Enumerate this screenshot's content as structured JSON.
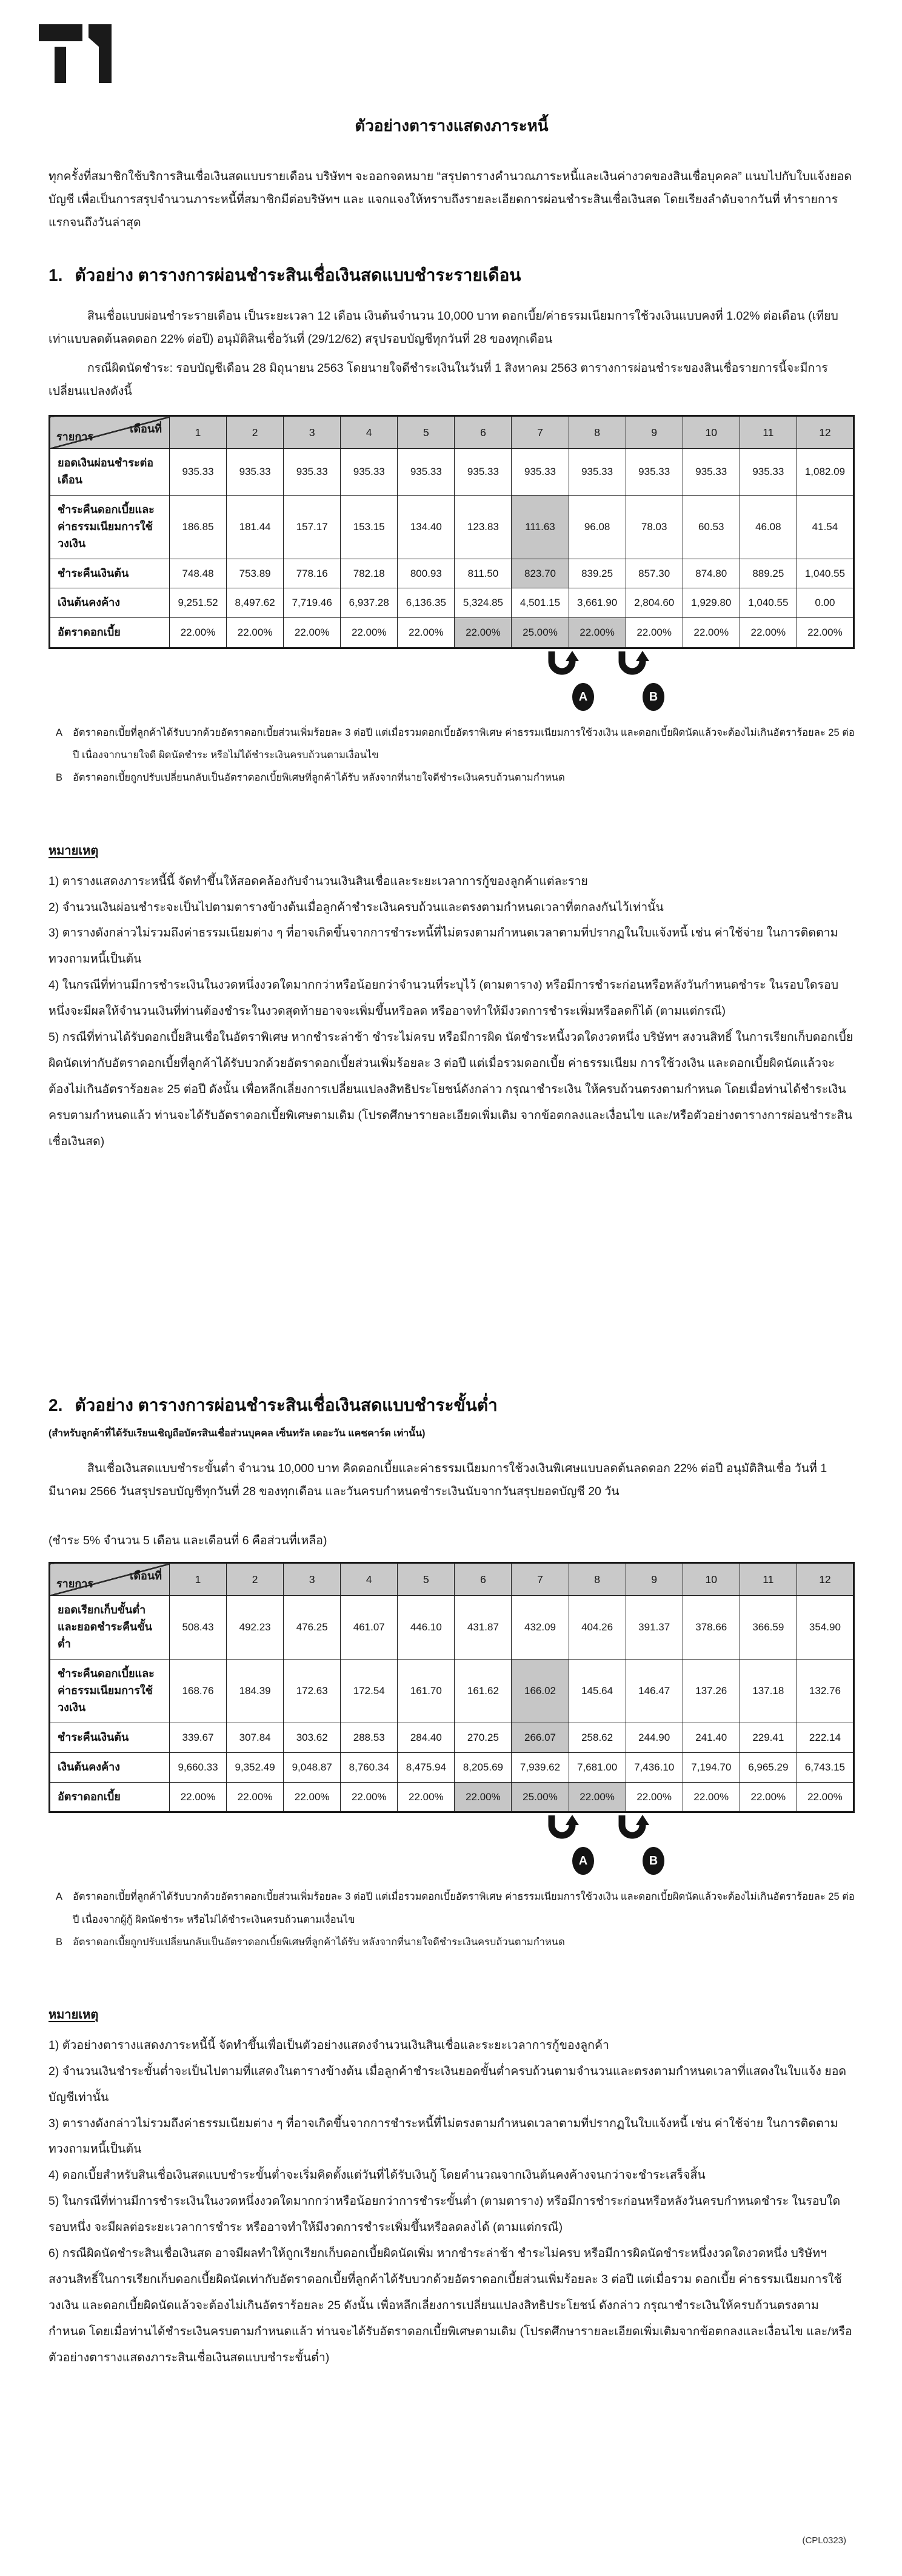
{
  "page": {
    "brand": "T1",
    "title": "ตัวอย่างตารางแสดงภาระหนี้",
    "intro": "ทุกครั้งที่สมาชิกใช้บริการสินเชื่อเงินสดแบบรายเดือน บริษัทฯ จะออกจดหมาย “สรุปตารางคำนวณภาระหนี้และเงินค่างวดของสินเชื่อบุคคล” แนบไปกับใบแจ้งยอดบัญชี เพื่อเป็นการสรุปจำนวนภาระหนี้ที่สมาชิกมีต่อบริษัทฯ และ แจกแจงให้ทราบถึงรายละเอียดการผ่อนชำระสินเชื่อเงินสด โดยเรียงลำดับจากวันที่ ทำรายการแรกจนถึงวันล่าสุด",
    "footer_code": "(CPL0323)"
  },
  "section1": {
    "number": "1.",
    "heading": "ตัวอย่าง ตารางการผ่อนชำระสินเชื่อเงินสดแบบชำระรายเดือน",
    "para1": "สินเชื่อแบบผ่อนชำระรายเดือน เป็นระยะเวลา 12 เดือน เงินต้นจำนวน 10,000 บาท ดอกเบี้ย/ค่าธรรมเนียมการใช้วงเงินแบบคงที่ 1.02% ต่อเดือน (เทียบเท่าแบบลดต้นลดดอก 22% ต่อปี) อนุมัติสินเชื่อวันที่ (29/12/62) สรุปรอบบัญชีทุกวันที่ 28 ของทุกเดือน",
    "para2": "กรณีผิดนัดชำระ: รอบบัญชีเดือน 28 มิถุนายน 2563 โดยนายใจดีชำระเงินในวันที่ 1 สิงหาคม 2563 ตารางการผ่อนชำระของสินเชื่อรายการนี้จะมีการเปลี่ยนแปลงดังนี้",
    "table": {
      "corner_top": "เดือนที่",
      "corner_bottom": "รายการ",
      "columns": [
        "1",
        "2",
        "3",
        "4",
        "5",
        "6",
        "7",
        "8",
        "9",
        "10",
        "11",
        "12"
      ],
      "rows": [
        {
          "label": "ยอดเงินผ่อนชำระต่อเดือน",
          "values": [
            "935.33",
            "935.33",
            "935.33",
            "935.33",
            "935.33",
            "935.33",
            "935.33",
            "935.33",
            "935.33",
            "935.33",
            "935.33",
            "1,082.09"
          ],
          "highlight": []
        },
        {
          "label": "ชำระคืนดอกเบี้ยและ\nค่าธรรมเนียมการใช้วงเงิน",
          "values": [
            "186.85",
            "181.44",
            "157.17",
            "153.15",
            "134.40",
            "123.83",
            "111.63",
            "96.08",
            "78.03",
            "60.53",
            "46.08",
            "41.54"
          ],
          "highlight": [
            6
          ]
        },
        {
          "label": "ชำระคืนเงินต้น",
          "values": [
            "748.48",
            "753.89",
            "778.16",
            "782.18",
            "800.93",
            "811.50",
            "823.70",
            "839.25",
            "857.30",
            "874.80",
            "889.25",
            "1,040.55"
          ],
          "highlight": [
            6
          ]
        },
        {
          "label": "เงินต้นคงค้าง",
          "values": [
            "9,251.52",
            "8,497.62",
            "7,719.46",
            "6,937.28",
            "6,136.35",
            "5,324.85",
            "4,501.15",
            "3,661.90",
            "2,804.60",
            "1,929.80",
            "1,040.55",
            "0.00"
          ],
          "highlight": []
        },
        {
          "label": "อัตราดอกเบี้ย",
          "values": [
            "22.00%",
            "22.00%",
            "22.00%",
            "22.00%",
            "22.00%",
            "22.00%",
            "25.00%",
            "22.00%",
            "22.00%",
            "22.00%",
            "22.00%",
            "22.00%"
          ],
          "highlight": [
            5,
            6,
            7
          ]
        }
      ]
    },
    "callout_a": "A",
    "callout_b": "B",
    "ab_notes": [
      {
        "label": "A",
        "text": "อัตราดอกเบี้ยที่ลูกค้าได้รับบวกด้วยอัตราดอกเบี้ยส่วนเพิ่มร้อยละ 3 ต่อปี แต่เมื่อรวมดอกเบี้ยอัตราพิเศษ ค่าธรรมเนียมการใช้วงเงิน และดอกเบี้ยผิดนัดแล้วจะต้องไม่เกินอัตราร้อยละ 25 ต่อปี เนื่องจากนายใจดี ผิดนัดชำระ หรือไม่ได้ชำระเงินครบถ้วนตามเงื่อนไข"
      },
      {
        "label": "B",
        "text": "อัตราดอกเบี้ยถูกปรับเปลี่ยนกลับเป็นอัตราดอกเบี้ยพิเศษที่ลูกค้าได้รับ หลังจากที่นายใจดีชำระเงินครบถ้วนตามกำหนด"
      }
    ],
    "remark_heading": "หมายเหตุ",
    "remarks": [
      "1) ตารางแสดงภาระหนี้นี้ จัดทำขึ้นให้สอดคล้องกับจำนวนเงินสินเชื่อและระยะเวลาการกู้ของลูกค้าแต่ละราย",
      "2) จำนวนเงินผ่อนชำระจะเป็นไปตามตารางข้างต้นเมื่อลูกค้าชำระเงินครบถ้วนและตรงตามกำหนดเวลาที่ตกลงกันไว้เท่านั้น",
      "3) ตารางดังกล่าวไม่รวมถึงค่าธรรมเนียมต่าง ๆ ที่อาจเกิดขึ้นจากการชำระหนี้ที่ไม่ตรงตามกำหนดเวลาตามที่ปรากฏในใบแจ้งหนี้ เช่น ค่าใช้จ่าย ในการติดตามทวงถามหนี้เป็นต้น",
      "4) ในกรณีที่ท่านมีการชำระเงินในงวดหนึ่งงวดใดมากกว่าหรือน้อยกว่าจำนวนที่ระบุไว้ (ตามตาราง) หรือมีการชำระก่อนหรือหลังวันกำหนดชำระ ในรอบใดรอบหนึ่งจะมีผลให้จำนวนเงินที่ท่านต้องชำระในงวดสุดท้ายอาจจะเพิ่มขึ้นหรือลด หรืออาจทำให้มีงวดการชำระเพิ่มหรือลดก็ได้ (ตามแต่กรณี)",
      "5) กรณีที่ท่านได้รับดอกเบี้ยสินเชื่อในอัตราพิเศษ หากชำระล่าช้า ชำระไม่ครบ หรือมีการผิด นัดชำระหนี้งวดใดงวดหนึ่ง บริษัทฯ สงวนสิทธิ์ ในการเรียกเก็บดอกเบี้ยผิดนัดเท่ากับอัตราดอกเบี้ยที่ลูกค้าได้รับบวกด้วยอัตราดอกเบี้ยส่วนเพิ่มร้อยละ 3 ต่อปี แต่เมื่อรวมดอกเบี้ย ค่าธรรมเนียม การใช้วงเงิน และดอกเบี้ยผิดนัดแล้วจะต้องไม่เกินอัตราร้อยละ 25 ต่อปี ดังนั้น เพื่อหลีกเลี่ยงการเปลี่ยนแปลงสิทธิประโยชน์ดังกล่าว กรุณาชำระเงิน ให้ครบถ้วนตรงตามกำหนด โดยเมื่อท่านได้ชำระเงินครบตามกำหนดแล้ว ท่านจะได้รับอัตราดอกเบี้ยพิเศษตามเดิม (โปรดศึกษารายละเอียดเพิ่มเติม จากข้อตกลงและเงื่อนไข และ/หรือตัวอย่างตารางการผ่อนชำระสินเชื่อเงินสด)"
    ]
  },
  "section2": {
    "number": "2.",
    "heading": "ตัวอย่าง ตารางการผ่อนชำระสินเชื่อเงินสดแบบชำระขั้นต่ำ",
    "subheading": "(สำหรับลูกค้าที่ได้รับเรียนเชิญถือบัตรสินเชื่อส่วนบุคคล เซ็นทรัล เดอะวัน แคชคาร์ด เท่านั้น)",
    "para1": "สินเชื่อเงินสดแบบชำระขั้นต่ำ จำนวน 10,000 บาท คิดดอกเบี้ยและค่าธรรมเนียมการใช้วงเงินพิเศษแบบลดต้นลดดอก 22% ต่อปี อนุมัติสินเชื่อ วันที่ 1 มีนาคม 2566 วันสรุปรอบบัญชีทุกวันที่ 28 ของทุกเดือน และวันครบกำหนดชำระเงินนับจากวันสรุปยอดบัญชี 20 วัน",
    "condition_line": "(ชำระ 5% จำนวน 5 เดือน และเดือนที่ 6 คือส่วนที่เหลือ)",
    "table": {
      "corner_top": "เดือนที่",
      "corner_bottom": "รายการ",
      "columns": [
        "1",
        "2",
        "3",
        "4",
        "5",
        "6",
        "7",
        "8",
        "9",
        "10",
        "11",
        "12"
      ],
      "rows": [
        {
          "label": "ยอดเรียกเก็บขั้นต่ำ\nและยอดชำระคืนขั้นต่ำ",
          "values": [
            "508.43",
            "492.23",
            "476.25",
            "461.07",
            "446.10",
            "431.87",
            "432.09",
            "404.26",
            "391.37",
            "378.66",
            "366.59",
            "354.90"
          ],
          "highlight": []
        },
        {
          "label": "ชำระคืนดอกเบี้ยและ\nค่าธรรมเนียมการใช้วงเงิน",
          "values": [
            "168.76",
            "184.39",
            "172.63",
            "172.54",
            "161.70",
            "161.62",
            "166.02",
            "145.64",
            "146.47",
            "137.26",
            "137.18",
            "132.76"
          ],
          "highlight": [
            6
          ]
        },
        {
          "label": "ชำระคืนเงินต้น",
          "values": [
            "339.67",
            "307.84",
            "303.62",
            "288.53",
            "284.40",
            "270.25",
            "266.07",
            "258.62",
            "244.90",
            "241.40",
            "229.41",
            "222.14"
          ],
          "highlight": [
            6
          ]
        },
        {
          "label": "เงินต้นคงค้าง",
          "values": [
            "9,660.33",
            "9,352.49",
            "9,048.87",
            "8,760.34",
            "8,475.94",
            "8,205.69",
            "7,939.62",
            "7,681.00",
            "7,436.10",
            "7,194.70",
            "6,965.29",
            "6,743.15"
          ],
          "highlight": []
        },
        {
          "label": "อัตราดอกเบี้ย",
          "values": [
            "22.00%",
            "22.00%",
            "22.00%",
            "22.00%",
            "22.00%",
            "22.00%",
            "25.00%",
            "22.00%",
            "22.00%",
            "22.00%",
            "22.00%",
            "22.00%"
          ],
          "highlight": [
            5,
            6,
            7
          ]
        }
      ]
    },
    "callout_a": "A",
    "callout_b": "B",
    "ab_notes": [
      {
        "label": "A",
        "text": "อัตราดอกเบี้ยที่ลูกค้าได้รับบวกด้วยอัตราดอกเบี้ยส่วนเพิ่มร้อยละ 3 ต่อปี แต่เมื่อรวมดอกเบี้ยอัตราพิเศษ ค่าธรรมเนียมการใช้วงเงิน และดอกเบี้ยผิดนัดแล้วจะต้องไม่เกินอัตราร้อยละ 25 ต่อปี เนื่องจากผู้กู้ ผิดนัดชำระ หรือไม่ได้ชำระเงินครบถ้วนตามเงื่อนไข"
      },
      {
        "label": "B",
        "text": "อัตราดอกเบี้ยถูกปรับเปลี่ยนกลับเป็นอัตราดอกเบี้ยพิเศษที่ลูกค้าได้รับ หลังจากที่นายใจดีชำระเงินครบถ้วนตามกำหนด"
      }
    ],
    "remark_heading": "หมายเหตุ",
    "remarks": [
      "1) ตัวอย่างตารางแสดงภาระหนี้นี้ จัดทำขึ้นเพื่อเป็นตัวอย่างแสดงจำนวนเงินสินเชื่อและระยะเวลาการกู้ของลูกค้า",
      "2) จำนวนเงินชำระขั้นต่ำจะเป็นไปตามที่แสดงในตารางข้างต้น เมื่อลูกค้าชำระเงินยอดขั้นต่ำครบถ้วนตามจำนวนและตรงตามกำหนดเวลาที่แสดงในใบแจ้ง ยอดบัญชีเท่านั้น",
      "3) ตารางดังกล่าวไม่รวมถึงค่าธรรมเนียมต่าง ๆ ที่อาจเกิดขึ้นจากการชำระหนี้ที่ไม่ตรงตามกำหนดเวลาตามที่ปรากฏในใบแจ้งหนี้ เช่น ค่าใช้จ่าย ในการติดตามทวงถามหนี้เป็นต้น",
      "4) ดอกเบี้ยสำหรับสินเชื่อเงินสดแบบชำระขั้นต่ำจะเริ่มคิดตั้งแต่วันที่ได้รับเงินกู้ โดยคำนวณจากเงินต้นคงค้างจนกว่าจะชำระเสร็จสิ้น",
      "5) ในกรณีที่ท่านมีการชำระเงินในงวดหนึ่งงวดใดมากกว่าหรือน้อยกว่าการชำระขั้นต่ำ (ตามตาราง) หรือมีการชำระก่อนหรือหลังวันครบกำหนดชำระ ในรอบใดรอบหนึ่ง จะมีผลต่อระยะเวลาการชำระ หรืออาจทำให้มีงวดการชำระเพิ่มขึ้นหรือลดลงได้ (ตามแต่กรณี)",
      "6) กรณีผิดนัดชำระสินเชื่อเงินสด อาจมีผลทำให้ถูกเรียกเก็บดอกเบี้ยผิดนัดเพิ่ม หากชำระล่าช้า ชำระไม่ครบ หรือมีการผิดนัดชำระหนึ่งงวดใดงวดหนึ่ง บริษัทฯ สงวนสิทธิ์ในการเรียกเก็บดอกเบี้ยผิดนัดเท่ากับอัตราดอกเบี้ยที่ลูกค้าได้รับบวกด้วยอัตราดอกเบี้ยส่วนเพิ่มร้อยละ 3 ต่อปี แต่เมื่อรวม ดอกเบี้ย ค่าธรรมเนียมการใช้วงเงิน และดอกเบี้ยผิดนัดแล้วจะต้องไม่เกินอัตราร้อยละ 25 ดังนั้น เพื่อหลีกเลี่ยงการเปลี่ยนแปลงสิทธิประโยชน์ ดังกล่าว กรุณาชำระเงินให้ครบถ้วนตรงตามกำหนด โดยเมื่อท่านได้ชำระเงินครบตามกำหนดแล้ว ท่านจะได้รับอัตราดอกเบี้ยพิเศษตามเดิม (โปรดศึกษารายละเอียดเพิ่มเติมจากข้อตกลงและเงื่อนไข และ/หรือตัวอย่างตารางแสดงภาระสินเชื่อเงินสดแบบชำระขั้นต่ำ)"
    ]
  }
}
